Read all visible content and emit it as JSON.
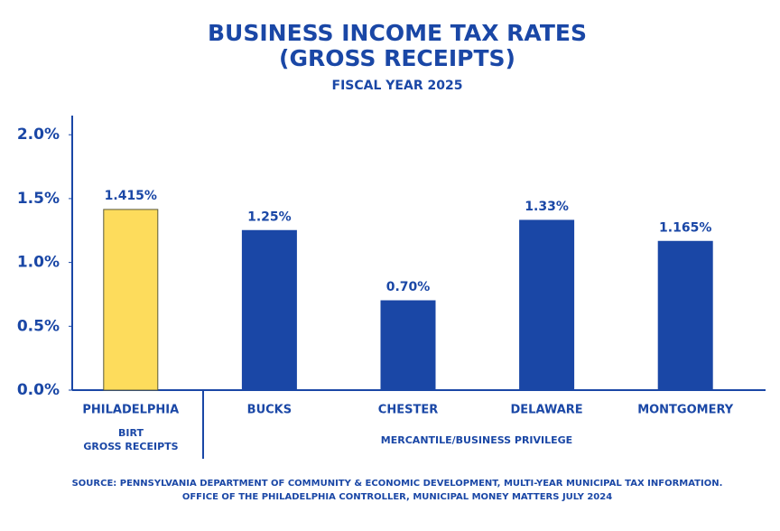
{
  "chart_data": {
    "type": "bar",
    "title": [
      "BUSINESS INCOME TAX RATES",
      "(GROSS RECEIPTS)"
    ],
    "subtitle": "FISCAL YEAR 2025",
    "categories": [
      "PHILADELPHIA",
      "BUCKS",
      "CHESTER",
      "DELAWARE",
      "MONTGOMERY"
    ],
    "values": [
      1.415,
      1.25,
      0.7,
      1.33,
      1.165
    ],
    "value_labels": [
      "1.415%",
      "1.25%",
      "0.70%",
      "1.33%",
      "1.165%"
    ],
    "colors": [
      "#fddc5c",
      "#1a47a6",
      "#1a47a6",
      "#1a47a6",
      "#1a47a6"
    ],
    "group_labels": [
      [
        "BIRT",
        "GROSS RECEIPTS"
      ],
      [
        "MERCANTILE/BUSINESS PRIVILEGE"
      ]
    ],
    "ylim": [
      0,
      2.15
    ],
    "yticks": [
      {
        "value": 0,
        "label": "0.0%"
      },
      {
        "value": 0.5,
        "label": "0.5%"
      },
      {
        "value": 1,
        "label": "1.0%"
      },
      {
        "value": 1.5,
        "label": "1.5%"
      },
      {
        "value": 2,
        "label": "2.0%"
      }
    ],
    "source": [
      "SOURCE: PENNSYLVANIA DEPARTMENT OF COMMUNITY & ECONOMIC DEVELOPMENT, MULTI-YEAR MUNICIPAL TAX INFORMATION.",
      "OFFICE OF THE PHILADELPHIA CONTROLLER, MUNICIPAL MONEY MATTERS JULY 2024"
    ]
  }
}
